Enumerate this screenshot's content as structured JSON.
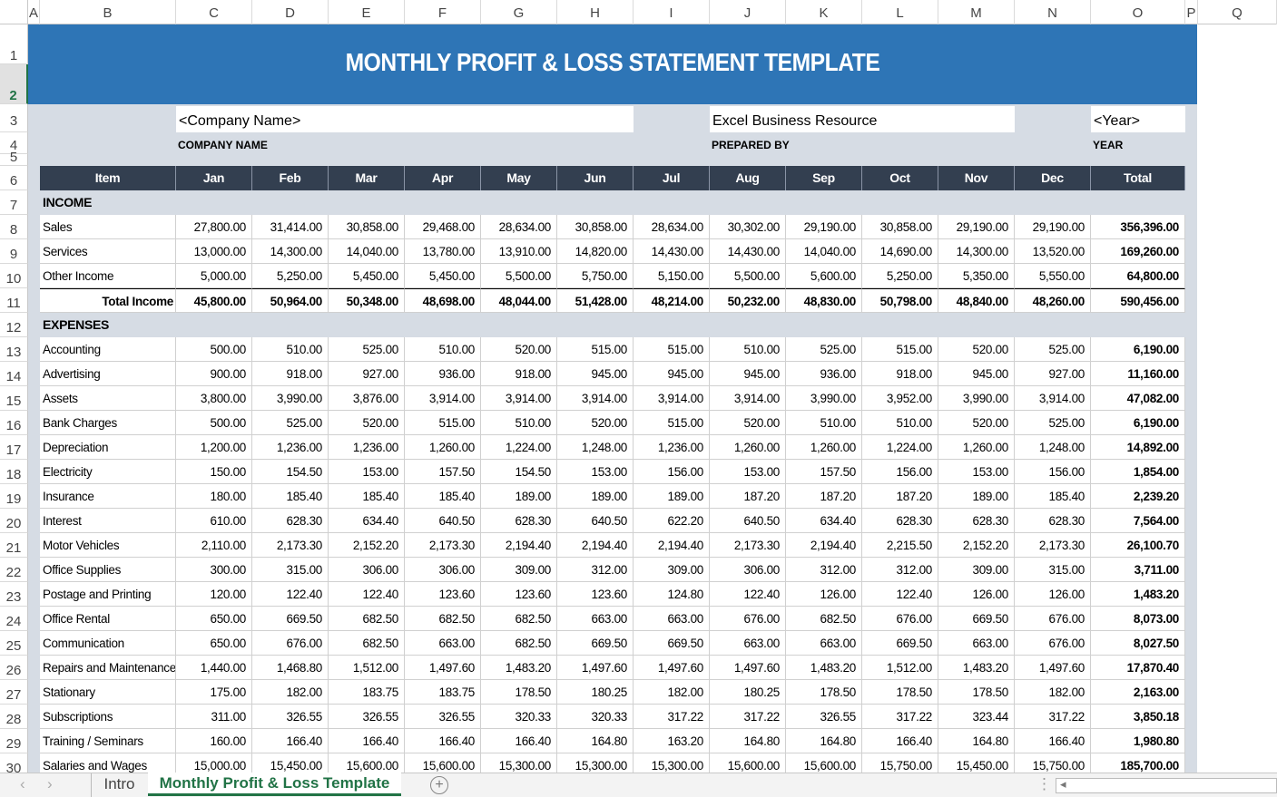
{
  "columns": [
    "A",
    "B",
    "C",
    "D",
    "E",
    "F",
    "G",
    "H",
    "I",
    "J",
    "K",
    "L",
    "M",
    "N",
    "O",
    "P",
    "Q"
  ],
  "title": "MONTHLY PROFIT & LOSS STATEMENT TEMPLATE",
  "company_value": "<Company Name>",
  "company_label": "COMPANY NAME",
  "prepared_value": "Excel Business Resource",
  "prepared_label": "PREPARED BY",
  "year_value": "<Year>",
  "year_label": "YEAR",
  "headers": [
    "Item",
    "Jan",
    "Feb",
    "Mar",
    "Apr",
    "May",
    "Jun",
    "Jul",
    "Aug",
    "Sep",
    "Oct",
    "Nov",
    "Dec",
    "Total"
  ],
  "income_label": "INCOME",
  "income": [
    [
      "Sales",
      "27,800.00",
      "31,414.00",
      "30,858.00",
      "29,468.00",
      "28,634.00",
      "30,858.00",
      "28,634.00",
      "30,302.00",
      "29,190.00",
      "30,858.00",
      "29,190.00",
      "29,190.00",
      "356,396.00"
    ],
    [
      "Services",
      "13,000.00",
      "14,300.00",
      "14,040.00",
      "13,780.00",
      "13,910.00",
      "14,820.00",
      "14,430.00",
      "14,430.00",
      "14,040.00",
      "14,690.00",
      "14,300.00",
      "13,520.00",
      "169,260.00"
    ],
    [
      "Other Income",
      "5,000.00",
      "5,250.00",
      "5,450.00",
      "5,450.00",
      "5,500.00",
      "5,750.00",
      "5,150.00",
      "5,500.00",
      "5,600.00",
      "5,250.00",
      "5,350.00",
      "5,550.00",
      "64,800.00"
    ]
  ],
  "total_income": [
    "Total Income",
    "45,800.00",
    "50,964.00",
    "50,348.00",
    "48,698.00",
    "48,044.00",
    "51,428.00",
    "48,214.00",
    "50,232.00",
    "48,830.00",
    "50,798.00",
    "48,840.00",
    "48,260.00",
    "590,456.00"
  ],
  "expenses_label": "EXPENSES",
  "expenses": [
    [
      "Accounting",
      "500.00",
      "510.00",
      "525.00",
      "510.00",
      "520.00",
      "515.00",
      "515.00",
      "510.00",
      "525.00",
      "515.00",
      "520.00",
      "525.00",
      "6,190.00"
    ],
    [
      "Advertising",
      "900.00",
      "918.00",
      "927.00",
      "936.00",
      "918.00",
      "945.00",
      "945.00",
      "945.00",
      "936.00",
      "918.00",
      "945.00",
      "927.00",
      "11,160.00"
    ],
    [
      "Assets",
      "3,800.00",
      "3,990.00",
      "3,876.00",
      "3,914.00",
      "3,914.00",
      "3,914.00",
      "3,914.00",
      "3,914.00",
      "3,990.00",
      "3,952.00",
      "3,990.00",
      "3,914.00",
      "47,082.00"
    ],
    [
      "Bank Charges",
      "500.00",
      "525.00",
      "520.00",
      "515.00",
      "510.00",
      "520.00",
      "515.00",
      "520.00",
      "510.00",
      "510.00",
      "520.00",
      "525.00",
      "6,190.00"
    ],
    [
      "Depreciation",
      "1,200.00",
      "1,236.00",
      "1,236.00",
      "1,260.00",
      "1,224.00",
      "1,248.00",
      "1,236.00",
      "1,260.00",
      "1,260.00",
      "1,224.00",
      "1,260.00",
      "1,248.00",
      "14,892.00"
    ],
    [
      "Electricity",
      "150.00",
      "154.50",
      "153.00",
      "157.50",
      "154.50",
      "153.00",
      "156.00",
      "153.00",
      "157.50",
      "156.00",
      "153.00",
      "156.00",
      "1,854.00"
    ],
    [
      "Insurance",
      "180.00",
      "185.40",
      "185.40",
      "185.40",
      "189.00",
      "189.00",
      "189.00",
      "187.20",
      "187.20",
      "187.20",
      "189.00",
      "185.40",
      "2,239.20"
    ],
    [
      "Interest",
      "610.00",
      "628.30",
      "634.40",
      "640.50",
      "628.30",
      "640.50",
      "622.20",
      "640.50",
      "634.40",
      "628.30",
      "628.30",
      "628.30",
      "7,564.00"
    ],
    [
      "Motor Vehicles",
      "2,110.00",
      "2,173.30",
      "2,152.20",
      "2,173.30",
      "2,194.40",
      "2,194.40",
      "2,194.40",
      "2,173.30",
      "2,194.40",
      "2,215.50",
      "2,152.20",
      "2,173.30",
      "26,100.70"
    ],
    [
      "Office Supplies",
      "300.00",
      "315.00",
      "306.00",
      "306.00",
      "309.00",
      "312.00",
      "309.00",
      "306.00",
      "312.00",
      "312.00",
      "309.00",
      "315.00",
      "3,711.00"
    ],
    [
      "Postage and Printing",
      "120.00",
      "122.40",
      "122.40",
      "123.60",
      "123.60",
      "123.60",
      "124.80",
      "122.40",
      "126.00",
      "122.40",
      "126.00",
      "126.00",
      "1,483.20"
    ],
    [
      "Office Rental",
      "650.00",
      "669.50",
      "682.50",
      "682.50",
      "682.50",
      "663.00",
      "663.00",
      "676.00",
      "682.50",
      "676.00",
      "669.50",
      "676.00",
      "8,073.00"
    ],
    [
      "Communication",
      "650.00",
      "676.00",
      "682.50",
      "663.00",
      "682.50",
      "669.50",
      "669.50",
      "663.00",
      "663.00",
      "669.50",
      "663.00",
      "676.00",
      "8,027.50"
    ],
    [
      "Repairs and Maintenance",
      "1,440.00",
      "1,468.80",
      "1,512.00",
      "1,497.60",
      "1,483.20",
      "1,497.60",
      "1,497.60",
      "1,497.60",
      "1,483.20",
      "1,512.00",
      "1,483.20",
      "1,497.60",
      "17,870.40"
    ],
    [
      "Stationary",
      "175.00",
      "182.00",
      "183.75",
      "183.75",
      "178.50",
      "180.25",
      "182.00",
      "180.25",
      "178.50",
      "178.50",
      "178.50",
      "182.00",
      "2,163.00"
    ],
    [
      "Subscriptions",
      "311.00",
      "326.55",
      "326.55",
      "326.55",
      "320.33",
      "320.33",
      "317.22",
      "317.22",
      "326.55",
      "317.22",
      "323.44",
      "317.22",
      "3,850.18"
    ],
    [
      "Training / Seminars",
      "160.00",
      "166.40",
      "166.40",
      "166.40",
      "166.40",
      "164.80",
      "163.20",
      "164.80",
      "164.80",
      "166.40",
      "164.80",
      "166.40",
      "1,980.80"
    ],
    [
      "Salaries and Wages",
      "15,000.00",
      "15,450.00",
      "15,600.00",
      "15,600.00",
      "15,300.00",
      "15,300.00",
      "15,300.00",
      "15,600.00",
      "15,600.00",
      "15,750.00",
      "15,450.00",
      "15,750.00",
      "185,700.00"
    ]
  ],
  "sheet_tabs": [
    "Intro",
    "Monthly Profit & Loss Template"
  ],
  "active_tab": 1
}
